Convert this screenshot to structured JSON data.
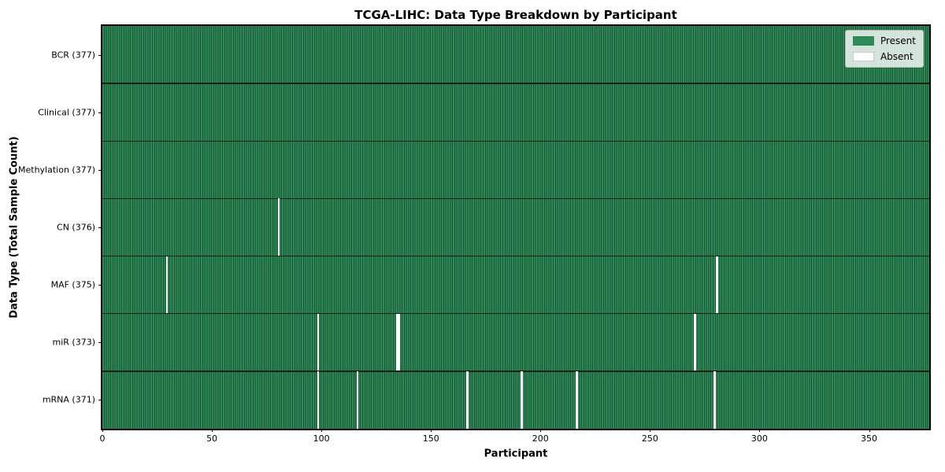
{
  "colors": {
    "present": "#2e8b57",
    "absent": "#ffffff",
    "cell_edge": "#1b5233",
    "row_separator": "#0b2013",
    "legend_swatch_absent_border": "#999999"
  },
  "legend": {
    "items": [
      {
        "label": "Present",
        "key": "present"
      },
      {
        "label": "Absent",
        "key": "absent"
      }
    ]
  },
  "chart_data": {
    "type": "heatmap",
    "title": "TCGA-LIHC: Data Type Breakdown by Participant",
    "xlabel": "Participant",
    "ylabel": "Data Type (Total Sample Count)",
    "legend": [
      "Present",
      "Absent"
    ],
    "legend_position": "upper right",
    "grid": false,
    "xlim": [
      0,
      377.5
    ],
    "n_participants": 377,
    "x_ticks": [
      0,
      50,
      100,
      150,
      200,
      250,
      300,
      350
    ],
    "rows": [
      {
        "data_type": "BCR",
        "label": "BCR (377)",
        "total": 377,
        "absent_participants": []
      },
      {
        "data_type": "Clinical",
        "label": "Clinical (377)",
        "total": 377,
        "absent_participants": []
      },
      {
        "data_type": "Methylation",
        "label": "Methylation (377)",
        "total": 377,
        "absent_participants": []
      },
      {
        "data_type": "CN",
        "label": "CN (376)",
        "total": 376,
        "absent_participants": [
          80
        ]
      },
      {
        "data_type": "MAF",
        "label": "MAF (375)",
        "total": 375,
        "absent_participants": [
          29,
          280
        ]
      },
      {
        "data_type": "miR",
        "label": "miR (373)",
        "total": 373,
        "absent_participants": [
          98,
          134,
          135,
          270
        ]
      },
      {
        "data_type": "mRNA",
        "label": "mRNA (371)",
        "total": 371,
        "absent_participants": [
          98,
          116,
          166,
          191,
          216,
          279
        ]
      }
    ]
  }
}
